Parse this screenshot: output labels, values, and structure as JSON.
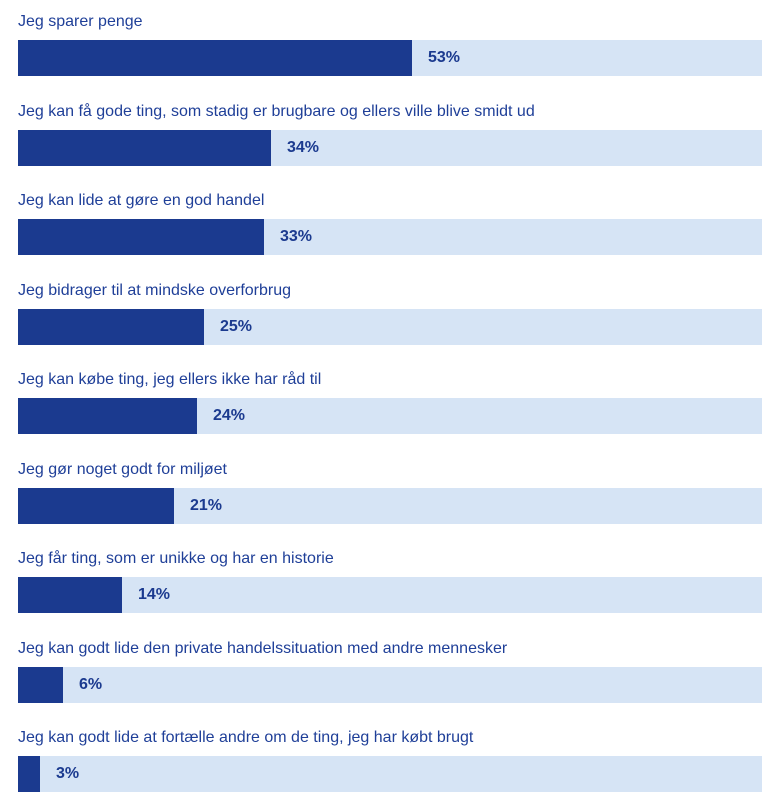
{
  "colors": {
    "fill": "#1b3a8f",
    "track": "#d6e4f5",
    "label": "#1f3f98"
  },
  "chart_data": {
    "type": "bar",
    "orientation": "horizontal",
    "categories": [
      "Jeg sparer penge",
      "Jeg kan få gode ting, som stadig er brugbare og ellers ville blive smidt ud",
      "Jeg kan lide at gøre en god handel",
      "Jeg bidrager til at mindske overforbrug",
      "Jeg kan købe ting, jeg ellers ikke har råd til",
      "Jeg gør noget godt for miljøet",
      "Jeg får ting, som er unikke og har en historie",
      "Jeg kan godt lide den private handelssituation med andre mennesker",
      "Jeg kan godt lide at fortælle andre om de ting, jeg har købt brugt"
    ],
    "values": [
      53,
      34,
      33,
      25,
      24,
      21,
      14,
      6,
      3
    ],
    "value_labels": [
      "53%",
      "34%",
      "33%",
      "25%",
      "24%",
      "21%",
      "14%",
      "6%",
      "3%"
    ],
    "xlim": [
      0,
      100
    ],
    "grid": false,
    "legend": "none"
  }
}
